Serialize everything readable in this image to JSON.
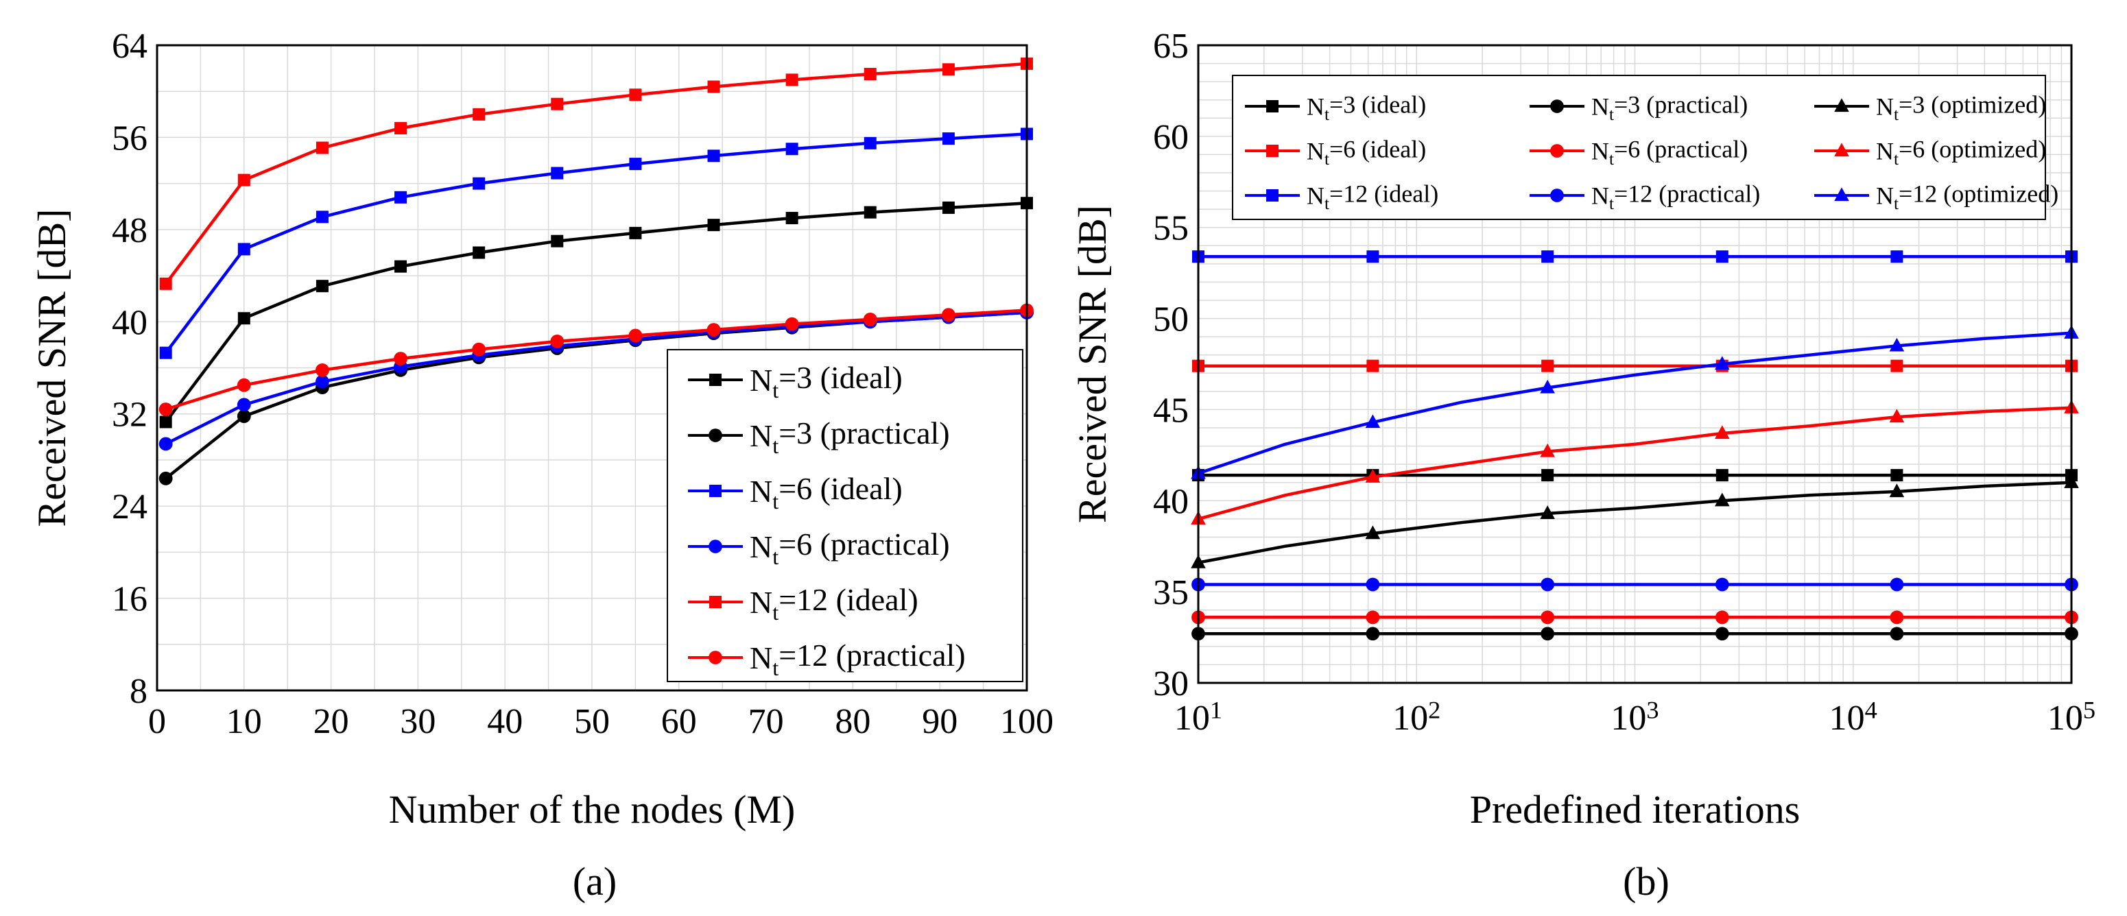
{
  "charts": [
    {
      "caption": "(a)",
      "chart_data": {
        "type": "line",
        "xlabel": "Number of the nodes (M)",
        "ylabel": "Received SNR [dB]",
        "xlim": [
          0,
          100
        ],
        "ylim": [
          8,
          64
        ],
        "xscale": "linear",
        "xticks": [
          0,
          10,
          20,
          30,
          40,
          50,
          60,
          70,
          80,
          90,
          100
        ],
        "yticks": [
          8,
          16,
          24,
          32,
          40,
          48,
          56,
          64
        ],
        "grid": true,
        "legend_position": "bottom-right",
        "series": [
          {
            "name": "N",
            "sub": "t",
            "suffix": "=3 (ideal)",
            "color": "#000000",
            "marker": "square",
            "x": [
              1,
              10,
              19,
              28,
              37,
              46,
              55,
              64,
              73,
              82,
              91,
              100
            ],
            "y": [
              31.3,
              40.3,
              43.1,
              44.8,
              46.0,
              47.0,
              47.7,
              48.4,
              49.0,
              49.5,
              49.9,
              50.3
            ]
          },
          {
            "name": "N",
            "sub": "t",
            "suffix": "=3 (practical)",
            "color": "#000000",
            "marker": "circle",
            "x": [
              1,
              10,
              19,
              28,
              37,
              46,
              55,
              64,
              73,
              82,
              91,
              100
            ],
            "y": [
              26.4,
              31.8,
              34.3,
              35.8,
              36.9,
              37.7,
              38.4,
              39.0,
              39.5,
              40.0,
              40.4,
              40.8
            ]
          },
          {
            "name": "N",
            "sub": "t",
            "suffix": "=6 (ideal)",
            "color": "#0000ff",
            "marker": "square",
            "x": [
              1,
              10,
              19,
              28,
              37,
              46,
              55,
              64,
              73,
              82,
              91,
              100
            ],
            "y": [
              37.3,
              46.3,
              49.1,
              50.8,
              52.0,
              52.9,
              53.7,
              54.4,
              55.0,
              55.5,
              55.9,
              56.3
            ]
          },
          {
            "name": "N",
            "sub": "t",
            "suffix": "=6 (practical)",
            "color": "#0000ff",
            "marker": "circle",
            "x": [
              1,
              10,
              19,
              28,
              37,
              46,
              55,
              64,
              73,
              82,
              91,
              100
            ],
            "y": [
              29.4,
              32.8,
              34.8,
              36.1,
              37.1,
              37.9,
              38.5,
              39.1,
              39.6,
              40.0,
              40.4,
              40.8
            ]
          },
          {
            "name": "N",
            "sub": "t",
            "suffix": "=12 (ideal)",
            "color": "#ff0000",
            "marker": "square",
            "x": [
              1,
              10,
              19,
              28,
              37,
              46,
              55,
              64,
              73,
              82,
              91,
              100
            ],
            "y": [
              43.3,
              52.3,
              55.1,
              56.8,
              58.0,
              58.9,
              59.7,
              60.4,
              61.0,
              61.5,
              61.9,
              62.4
            ]
          },
          {
            "name": "N",
            "sub": "t",
            "suffix": "=12 (practical)",
            "color": "#ff0000",
            "marker": "circle",
            "x": [
              1,
              10,
              19,
              28,
              37,
              46,
              55,
              64,
              73,
              82,
              91,
              100
            ],
            "y": [
              32.4,
              34.5,
              35.8,
              36.8,
              37.6,
              38.3,
              38.8,
              39.3,
              39.8,
              40.2,
              40.6,
              41.0
            ]
          }
        ]
      }
    },
    {
      "caption": "(b)",
      "chart_data": {
        "type": "line",
        "xlabel": "Predefined iterations",
        "ylabel": "Received SNR [dB]",
        "xlim": [
          10,
          100000
        ],
        "ylim": [
          30,
          65
        ],
        "xscale": "log",
        "xticks": [
          1,
          2,
          3,
          4,
          5
        ],
        "xtick_base": "10",
        "yticks": [
          30,
          35,
          40,
          45,
          50,
          55,
          60,
          65
        ],
        "grid": true,
        "legend_position": "top",
        "legend_columns": 3,
        "series": [
          {
            "name": "N",
            "sub": "t",
            "suffix": "=3 (ideal)",
            "color": "#000000",
            "marker": "square",
            "x": [
              10,
              63,
              398,
              2512,
              15849,
              100000
            ],
            "y": [
              41.4,
              41.4,
              41.4,
              41.4,
              41.4,
              41.4
            ]
          },
          {
            "name": "N",
            "sub": "t",
            "suffix": "=3 (practical)",
            "color": "#000000",
            "marker": "circle",
            "x": [
              10,
              63,
              398,
              2512,
              15849,
              100000
            ],
            "y": [
              32.7,
              32.7,
              32.7,
              32.7,
              32.7,
              32.7
            ]
          },
          {
            "name": "N",
            "sub": "t",
            "suffix": "=3 (optimized)",
            "color": "#000000",
            "marker": "triangle",
            "x": [
              10,
              25,
              63,
              160,
              398,
              1000,
              2512,
              6310,
              15849,
              40000,
              100000
            ],
            "y": [
              36.6,
              37.5,
              38.2,
              38.8,
              39.3,
              39.6,
              40.0,
              40.3,
              40.5,
              40.8,
              41.0
            ]
          },
          {
            "name": "N",
            "sub": "t",
            "suffix": "=6 (ideal)",
            "color": "#ff0000",
            "marker": "square",
            "x": [
              10,
              63,
              398,
              2512,
              15849,
              100000
            ],
            "y": [
              47.4,
              47.4,
              47.4,
              47.4,
              47.4,
              47.4
            ]
          },
          {
            "name": "N",
            "sub": "t",
            "suffix": "=6 (practical)",
            "color": "#ff0000",
            "marker": "circle",
            "x": [
              10,
              63,
              398,
              2512,
              15849,
              100000
            ],
            "y": [
              33.6,
              33.6,
              33.6,
              33.6,
              33.6,
              33.6
            ]
          },
          {
            "name": "N",
            "sub": "t",
            "suffix": "=6 (optimized)",
            "color": "#ff0000",
            "marker": "triangle",
            "x": [
              10,
              25,
              63,
              160,
              398,
              1000,
              2512,
              6310,
              15849,
              40000,
              100000
            ],
            "y": [
              39.0,
              40.3,
              41.3,
              42.0,
              42.7,
              43.1,
              43.7,
              44.1,
              44.6,
              44.9,
              45.1
            ]
          },
          {
            "name": "N",
            "sub": "t",
            "suffix": "=12 (ideal)",
            "color": "#0000ff",
            "marker": "square",
            "x": [
              10,
              63,
              398,
              2512,
              15849,
              100000
            ],
            "y": [
              53.4,
              53.4,
              53.4,
              53.4,
              53.4,
              53.4
            ]
          },
          {
            "name": "N",
            "sub": "t",
            "suffix": "=12 (practical)",
            "color": "#0000ff",
            "marker": "circle",
            "x": [
              10,
              63,
              398,
              2512,
              15849,
              100000
            ],
            "y": [
              35.4,
              35.4,
              35.4,
              35.4,
              35.4,
              35.4
            ]
          },
          {
            "name": "N",
            "sub": "t",
            "suffix": "=12 (optimized)",
            "color": "#0000ff",
            "marker": "triangle",
            "x": [
              10,
              25,
              63,
              160,
              398,
              1000,
              2512,
              6310,
              15849,
              40000,
              100000
            ],
            "y": [
              41.5,
              43.1,
              44.3,
              45.4,
              46.2,
              46.9,
              47.5,
              48.0,
              48.5,
              48.9,
              49.2
            ]
          }
        ]
      }
    }
  ]
}
